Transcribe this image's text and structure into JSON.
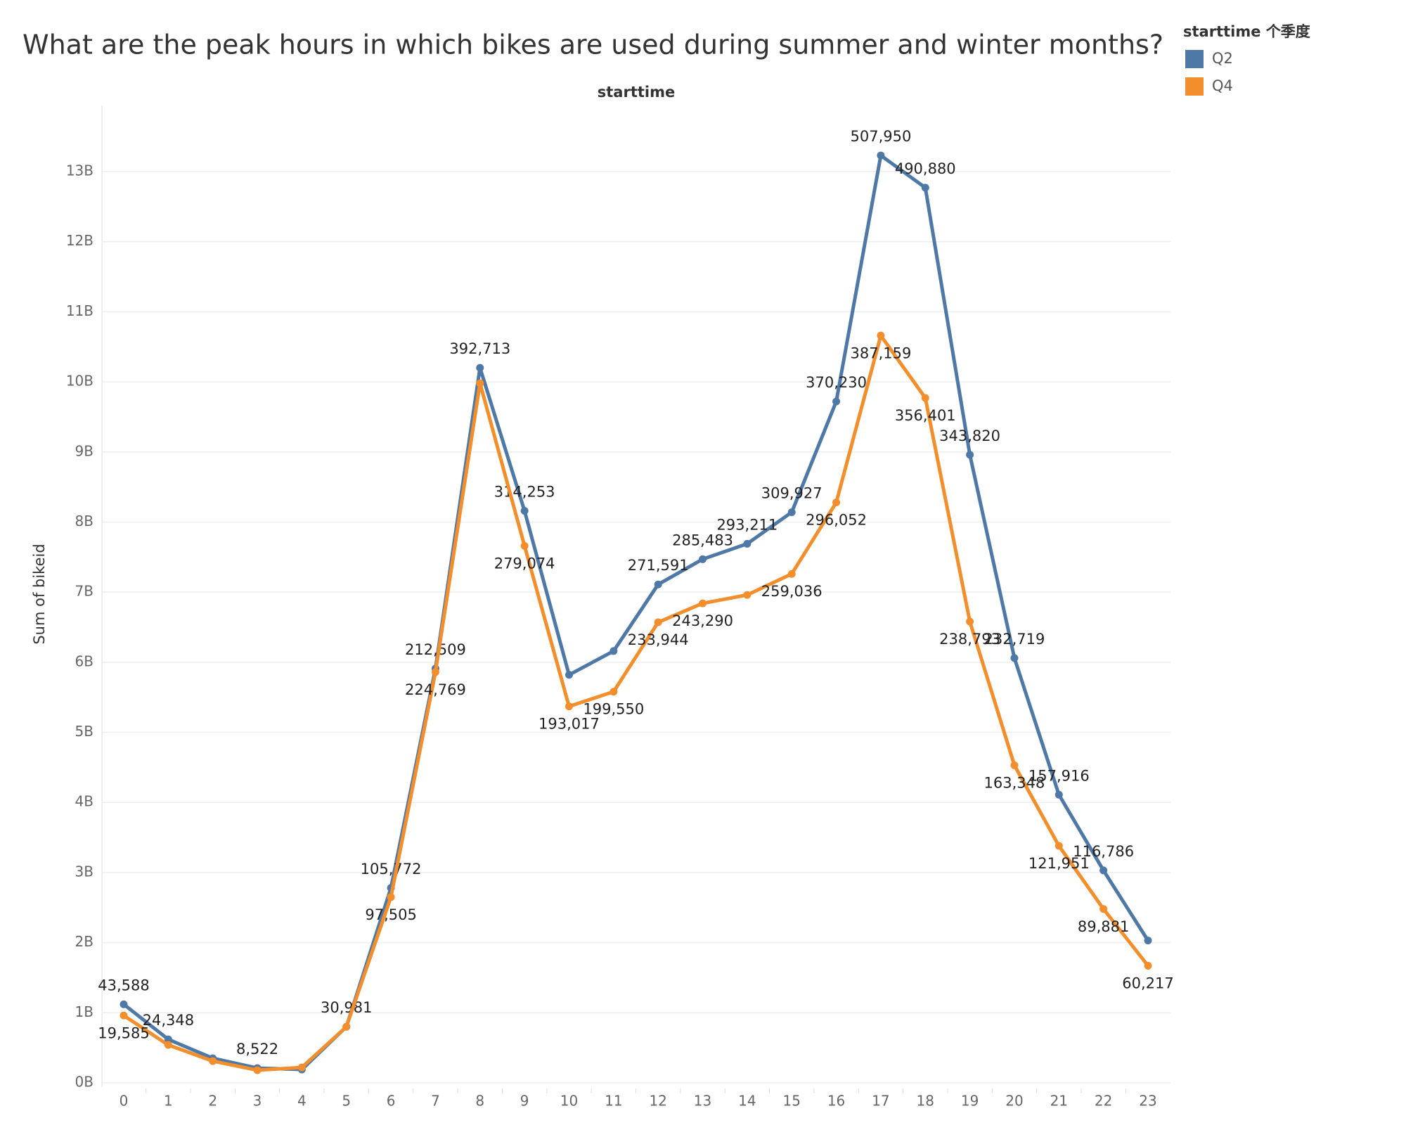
{
  "chart_data": {
    "type": "line",
    "title": "What are the peak hours in which bikes are used during summer and winter months?",
    "subtitle": "starttime",
    "y_label": "Sum of bikeid",
    "legend_title": "starttime 个季度",
    "legend_position": "top-right",
    "grid": true,
    "x": [
      0,
      1,
      2,
      3,
      4,
      5,
      6,
      7,
      8,
      9,
      10,
      11,
      12,
      13,
      14,
      15,
      16,
      17,
      18,
      19,
      20,
      21,
      22,
      23
    ],
    "ylim": [
      0,
      13.5
    ],
    "yticks": [
      {
        "value": 0,
        "label": "0B"
      },
      {
        "value": 1,
        "label": "1B"
      },
      {
        "value": 2,
        "label": "2B"
      },
      {
        "value": 3,
        "label": "3B"
      },
      {
        "value": 4,
        "label": "4B"
      },
      {
        "value": 5,
        "label": "5B"
      },
      {
        "value": 6,
        "label": "6B"
      },
      {
        "value": 7,
        "label": "7B"
      },
      {
        "value": 8,
        "label": "8B"
      },
      {
        "value": 9,
        "label": "9B"
      },
      {
        "value": 10,
        "label": "10B"
      },
      {
        "value": 11,
        "label": "11B"
      },
      {
        "value": 12,
        "label": "12B"
      },
      {
        "value": 13,
        "label": "13B"
      }
    ],
    "series": [
      {
        "name": "Q2",
        "color": "#4e79a7",
        "values": [
          1.12,
          0.62,
          0.35,
          0.21,
          0.19,
          0.8,
          2.78,
          5.91,
          10.2,
          8.16,
          5.82,
          6.16,
          7.11,
          7.47,
          7.69,
          8.14,
          9.72,
          13.23,
          12.77,
          8.96,
          6.06,
          4.11,
          3.03,
          2.03
        ],
        "point_labels": [
          "43,588",
          "24,348",
          null,
          "8,522",
          null,
          "30,981",
          "105,772",
          "212,509",
          "392,713",
          "314,253",
          null,
          null,
          "271,591",
          "285,483",
          "293,211",
          "309,927",
          "370,230",
          "507,950",
          "490,880",
          "343,820",
          "232,719",
          "157,916",
          "116,786",
          null
        ]
      },
      {
        "name": "Q4",
        "color": "#f28e2b",
        "values": [
          0.96,
          0.54,
          0.31,
          0.18,
          0.22,
          0.8,
          2.65,
          5.86,
          9.98,
          7.66,
          5.37,
          5.58,
          6.57,
          6.84,
          6.96,
          7.26,
          8.28,
          10.66,
          9.77,
          6.58,
          4.53,
          3.38,
          2.48,
          1.67
        ],
        "point_labels": [
          "19,585",
          null,
          null,
          null,
          null,
          null,
          "97,505",
          "224,769",
          null,
          "279,074",
          "193,017",
          "199,550",
          "233,944",
          "243,290",
          null,
          "259,036",
          "296,052",
          "387,159",
          "356,401",
          "238,793",
          "163,348",
          "121,951",
          "89,881",
          "60,217"
        ]
      }
    ]
  }
}
